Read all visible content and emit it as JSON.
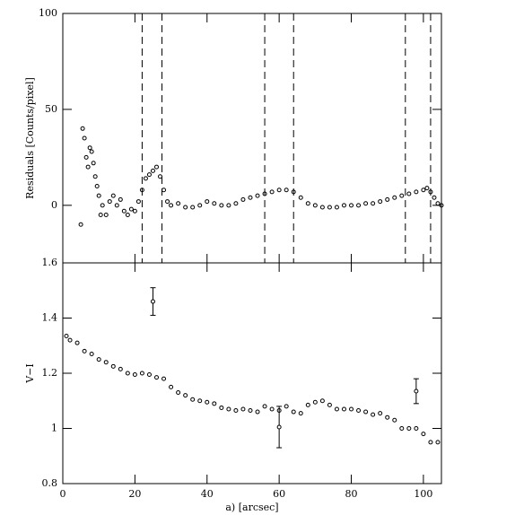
{
  "chart_data": [
    {
      "type": "scatter",
      "ylabel": "Residuals [Counts/pixel]",
      "xlim": [
        0,
        105
      ],
      "ylim": [
        -30,
        100
      ],
      "yticks": [
        0,
        50,
        100
      ],
      "vlines": [
        22,
        27.5,
        56,
        64,
        95,
        102
      ],
      "x": [
        5,
        5.5,
        6,
        6.5,
        7,
        7.5,
        8,
        8.5,
        9,
        9.5,
        10,
        10.5,
        11,
        12,
        13,
        14,
        15,
        16,
        17,
        18,
        19,
        20,
        21,
        22,
        23,
        24,
        25,
        26,
        27,
        28,
        29,
        30,
        32,
        34,
        36,
        38,
        40,
        42,
        44,
        46,
        48,
        50,
        52,
        54,
        56,
        58,
        60,
        62,
        64,
        66,
        68,
        70,
        72,
        74,
        76,
        78,
        80,
        82,
        84,
        86,
        88,
        90,
        92,
        94,
        96,
        98,
        100,
        101,
        102,
        103,
        104,
        105
      ],
      "values": [
        -10,
        40,
        35,
        25,
        20,
        30,
        28,
        22,
        15,
        10,
        5,
        -5,
        0,
        -5,
        2,
        5,
        0,
        3,
        -3,
        -5,
        -2,
        -3,
        2,
        8,
        14,
        16,
        18,
        20,
        15,
        8,
        2,
        0,
        1,
        -1,
        -1,
        0,
        2,
        1,
        0,
        0,
        1,
        3,
        4,
        5,
        6,
        7,
        8,
        8,
        7,
        4,
        1,
        0,
        -1,
        -1,
        -1,
        0,
        0,
        0,
        1,
        1,
        2,
        3,
        4,
        5,
        6,
        7,
        8,
        9,
        7,
        4,
        1,
        0
      ]
    },
    {
      "type": "scatter",
      "xlabel": "a) [arcsec]",
      "ylabel": "V−I",
      "xlim": [
        0,
        105
      ],
      "xticks": [
        0,
        20,
        40,
        60,
        80,
        100
      ],
      "ylim": [
        0.8,
        1.6
      ],
      "yticks": [
        0.8,
        1,
        1.2,
        1.4,
        1.6
      ],
      "x": [
        1,
        2,
        4,
        6,
        8,
        10,
        12,
        14,
        16,
        18,
        20,
        22,
        24,
        26,
        28,
        30,
        32,
        34,
        36,
        38,
        40,
        42,
        44,
        46,
        48,
        50,
        52,
        54,
        56,
        58,
        60,
        62,
        64,
        66,
        68,
        70,
        72,
        74,
        76,
        78,
        80,
        82,
        84,
        86,
        88,
        90,
        92,
        94,
        96,
        98,
        100,
        102,
        104
      ],
      "values": [
        1.335,
        1.32,
        1.31,
        1.28,
        1.27,
        1.25,
        1.24,
        1.225,
        1.215,
        1.2,
        1.195,
        1.2,
        1.195,
        1.185,
        1.18,
        1.15,
        1.13,
        1.12,
        1.105,
        1.1,
        1.095,
        1.09,
        1.075,
        1.07,
        1.065,
        1.07,
        1.065,
        1.06,
        1.08,
        1.07,
        1.065,
        1.08,
        1.06,
        1.055,
        1.085,
        1.095,
        1.1,
        1.085,
        1.07,
        1.07,
        1.07,
        1.065,
        1.06,
        1.05,
        1.055,
        1.04,
        1.03,
        1.0,
        1.0,
        1.0,
        0.98,
        0.95,
        0.95
      ],
      "errorbars": {
        "x": [
          25,
          60,
          98
        ],
        "values": [
          1.46,
          1.005,
          1.135
        ],
        "errors": [
          0.05,
          0.075,
          0.045
        ]
      }
    }
  ]
}
